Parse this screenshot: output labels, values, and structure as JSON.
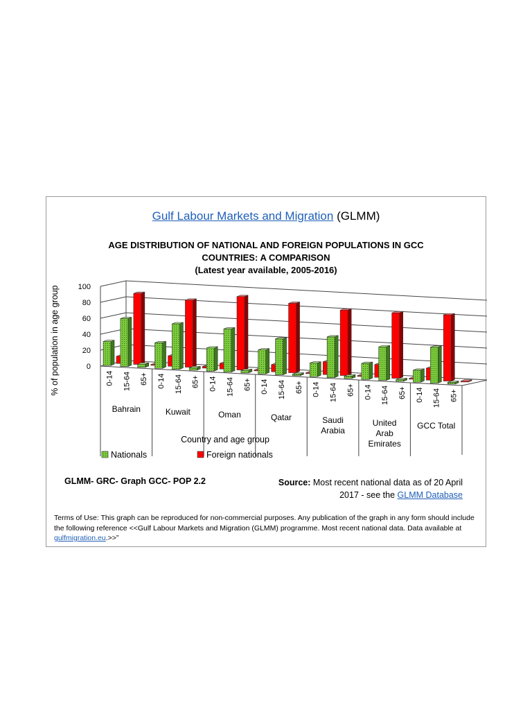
{
  "header": {
    "link_text": "Gulf Labour Markets and Migration",
    "suffix": "(GLMM)"
  },
  "footer": {
    "reference": "GLMM- GRC- Graph GCC- POP 2.2",
    "source_label": "Source:",
    "source_text": "Most recent national data as of 20 April 2017 - see the",
    "source_link": "GLMM Database",
    "terms_text": "Terms of Use: This graph can be reproduced for non-commercial purposes. Any publication of the graph in any form should include the following reference <<Gulf Labour Markets and Migration (GLMM) programme. Most recent national data. Data available at",
    "terms_link": "gulfmigration.eu",
    "terms_end": ".>>”"
  },
  "chart_data": {
    "type": "bar",
    "title_lines": [
      "AGE DISTRIBUTION OF NATIONAL AND FOREIGN POPULATIONS IN GCC",
      "COUNTRIES: A COMPARISON",
      "(Latest year available, 2005-2016)"
    ],
    "ylabel": "% of population in age group",
    "xlabel": "Country and age group",
    "ylim": [
      0,
      100
    ],
    "yticks": [
      "0",
      "20",
      "40",
      "60",
      "80",
      "100"
    ],
    "groups": [
      "Bahrain",
      "Kuwait",
      "Oman",
      "Qatar",
      "Saudi Arabia",
      "United Arab Emirates",
      "GCC Total"
    ],
    "age_groups": [
      "0-14",
      "15-64",
      "65+"
    ],
    "series": [
      {
        "name": "Nationals",
        "color": "#7ccb3c",
        "values": [
          [
            30,
            60,
            4
          ],
          [
            32,
            57,
            3
          ],
          [
            29,
            54,
            3
          ],
          [
            30,
            45,
            2
          ],
          [
            17,
            51,
            3
          ],
          [
            20,
            42,
            2
          ],
          [
            15,
            45,
            2
          ]
        ]
      },
      {
        "name": "Foreign nationals",
        "color": "#ff0000",
        "values": [
          [
            9,
            89,
            1
          ],
          [
            13,
            84,
            2
          ],
          [
            7,
            92,
            1
          ],
          [
            9,
            87,
            1
          ],
          [
            16,
            82,
            1
          ],
          [
            16,
            82,
            1
          ],
          [
            15,
            83,
            1
          ]
        ]
      }
    ],
    "legend_position": "bottom",
    "grid": true
  }
}
